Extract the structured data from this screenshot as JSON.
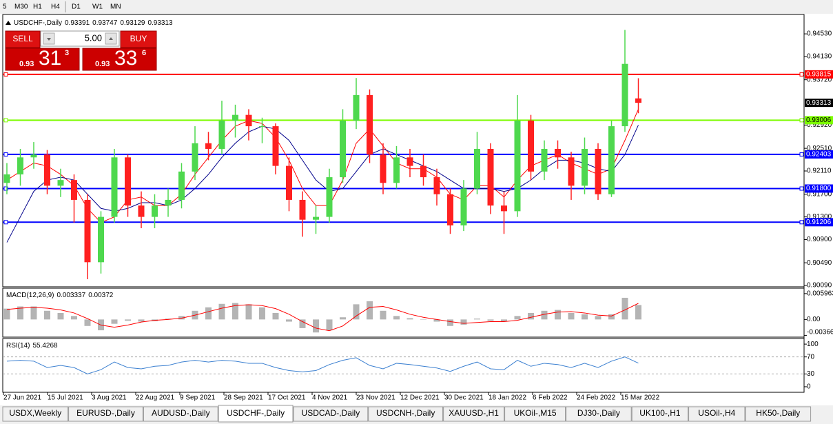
{
  "toolbar": {
    "timeframes": [
      "5",
      "M30",
      "H1",
      "H4",
      "D1",
      "W1",
      "MN"
    ]
  },
  "trade_panel": {
    "sell": "SELL",
    "buy": "BUY",
    "lot": "5.00",
    "bid_prefix": "0.93",
    "bid_big": "31",
    "bid_small": "3",
    "ask_prefix": "0.93",
    "ask_big": "33",
    "ask_small": "6"
  },
  "chart_data": [
    {
      "type": "candlestick",
      "title": "USDCHF-,Daily",
      "up_color": "#4ed84e",
      "down_color": "#ff2020",
      "ylim": [
        0.90066,
        0.94872
      ],
      "yticks": [
        {
          "value": 0.9453,
          "label": "0.94530"
        },
        {
          "value": 0.9413,
          "label": "0.94130"
        },
        {
          "value": 0.9372,
          "label": "0.93720"
        },
        {
          "value": 0.9292,
          "label": "0.92920"
        },
        {
          "value": 0.9251,
          "label": "0.92510"
        },
        {
          "value": 0.9211,
          "label": "0.92110"
        },
        {
          "value": 0.917,
          "label": "0.91700"
        },
        {
          "value": 0.913,
          "label": "0.91300"
        },
        {
          "value": 0.909,
          "label": "0.90900"
        },
        {
          "value": 0.9049,
          "label": "0.90490"
        },
        {
          "value": 0.9009,
          "label": "0.90090"
        }
      ],
      "levels": [
        {
          "value": 0.93815,
          "color": "#ff0000"
        },
        {
          "value": 0.93006,
          "color": "#7cfc00"
        },
        {
          "value": 0.92403,
          "color": "#0000ff"
        },
        {
          "value": 0.918,
          "label": "0.91800",
          "color": "#0000ff"
        },
        {
          "value": 0.91206,
          "color": "#0000ff"
        }
      ],
      "x_tick_labels": [
        "27 Jun 2021",
        "15 Jul 2021",
        "3 Aug 2021",
        "22 Aug 2021",
        "9 Sep 2021",
        "28 Sep 2021",
        "17 Oct 2021",
        "4 Nov 2021",
        "23 Nov 2021",
        "12 Dec 2021",
        "30 Dec 2021",
        "18 Jan 2022",
        "6 Feb 2022",
        "24 Feb 2022",
        "15 Mar 2022"
      ],
      "candles": [
        [
          0.919,
          0.9225,
          0.917,
          0.9205
        ],
        [
          0.9205,
          0.925,
          0.9185,
          0.9235
        ],
        [
          0.9235,
          0.9262,
          0.9215,
          0.924
        ],
        [
          0.924,
          0.9248,
          0.917,
          0.9185
        ],
        [
          0.9185,
          0.9215,
          0.9165,
          0.9195
        ],
        [
          0.9195,
          0.9205,
          0.912,
          0.916
        ],
        [
          0.916,
          0.917,
          0.902,
          0.905
        ],
        [
          0.905,
          0.914,
          0.903,
          0.913
        ],
        [
          0.913,
          0.925,
          0.912,
          0.9235
        ],
        [
          0.9235,
          0.924,
          0.913,
          0.915
        ],
        [
          0.915,
          0.9175,
          0.911,
          0.913
        ],
        [
          0.913,
          0.917,
          0.911,
          0.915
        ],
        [
          0.915,
          0.918,
          0.913,
          0.916
        ],
        [
          0.916,
          0.9225,
          0.9145,
          0.921
        ],
        [
          0.921,
          0.929,
          0.9195,
          0.926
        ],
        [
          0.926,
          0.928,
          0.923,
          0.925
        ],
        [
          0.925,
          0.9335,
          0.924,
          0.93
        ],
        [
          0.93,
          0.9328,
          0.927,
          0.931
        ],
        [
          0.931,
          0.932,
          0.9265,
          0.929
        ],
        [
          0.929,
          0.9305,
          0.926,
          0.929
        ],
        [
          0.929,
          0.9295,
          0.9205,
          0.922
        ],
        [
          0.922,
          0.9235,
          0.914,
          0.916
        ],
        [
          0.916,
          0.9175,
          0.9095,
          0.9125
        ],
        [
          0.9125,
          0.915,
          0.91,
          0.913
        ],
        [
          0.913,
          0.9215,
          0.912,
          0.92
        ],
        [
          0.92,
          0.932,
          0.919,
          0.93
        ],
        [
          0.93,
          0.9375,
          0.9285,
          0.9345
        ],
        [
          0.9345,
          0.9355,
          0.9225,
          0.924
        ],
        [
          0.924,
          0.926,
          0.917,
          0.919
        ],
        [
          0.919,
          0.9255,
          0.918,
          0.9235
        ],
        [
          0.9235,
          0.925,
          0.92,
          0.922
        ],
        [
          0.922,
          0.924,
          0.9185,
          0.92
        ],
        [
          0.92,
          0.9215,
          0.915,
          0.917
        ],
        [
          0.917,
          0.918,
          0.91,
          0.9115
        ],
        [
          0.9115,
          0.9195,
          0.9105,
          0.918
        ],
        [
          0.918,
          0.928,
          0.917,
          0.925
        ],
        [
          0.925,
          0.926,
          0.9135,
          0.915
        ],
        [
          0.915,
          0.9175,
          0.91,
          0.914
        ],
        [
          0.914,
          0.9345,
          0.913,
          0.93
        ],
        [
          0.93,
          0.931,
          0.9195,
          0.921
        ],
        [
          0.921,
          0.9265,
          0.9195,
          0.925
        ],
        [
          0.925,
          0.9265,
          0.9215,
          0.9235
        ],
        [
          0.9235,
          0.9245,
          0.916,
          0.9185
        ],
        [
          0.9185,
          0.927,
          0.917,
          0.925
        ],
        [
          0.925,
          0.926,
          0.916,
          0.917
        ],
        [
          0.917,
          0.93,
          0.9165,
          0.929
        ],
        [
          0.929,
          0.946,
          0.928,
          0.94
        ],
        [
          0.93391,
          0.93747,
          0.93129,
          0.93313
        ]
      ],
      "moving_averages": [
        {
          "color": "#ff0000",
          "values": [
            0.9195,
            0.921,
            0.9225,
            0.922,
            0.9205,
            0.9185,
            0.9145,
            0.912,
            0.913,
            0.916,
            0.9165,
            0.915,
            0.915,
            0.917,
            0.9205,
            0.9235,
            0.9265,
            0.929,
            0.93,
            0.9295,
            0.927,
            0.923,
            0.918,
            0.915,
            0.915,
            0.9195,
            0.926,
            0.9285,
            0.9255,
            0.9225,
            0.9215,
            0.9215,
            0.92,
            0.917,
            0.916,
            0.9185,
            0.9185,
            0.9165,
            0.9195,
            0.922,
            0.923,
            0.924,
            0.9225,
            0.9215,
            0.9205,
            0.9215,
            0.9265,
            0.932
          ]
        },
        {
          "color": "#00008b",
          "values": [
            0.9085,
            0.913,
            0.9175,
            0.9195,
            0.92,
            0.9195,
            0.917,
            0.9145,
            0.914,
            0.9145,
            0.9155,
            0.9155,
            0.915,
            0.916,
            0.918,
            0.9205,
            0.9235,
            0.926,
            0.928,
            0.929,
            0.9285,
            0.9265,
            0.923,
            0.9195,
            0.9175,
            0.918,
            0.921,
            0.924,
            0.925,
            0.924,
            0.923,
            0.922,
            0.921,
            0.9195,
            0.918,
            0.918,
            0.918,
            0.9175,
            0.918,
            0.9195,
            0.9215,
            0.923,
            0.923,
            0.9225,
            0.9215,
            0.921,
            0.924,
            0.9292
          ]
        }
      ]
    },
    {
      "type": "macd",
      "title": "MACD(12,26,9)",
      "hist_color": "#b4b4b4",
      "signal_color": "#ff0000",
      "ylim": [
        -0.00392,
        0.00706
      ],
      "yticks": [
        0.005963,
        {
          "value": 0,
          "label": "0.00"
        },
        -0.003664
      ],
      "values": [
        0.0025,
        0.003,
        0.003,
        0.002,
        0.0015,
        0.0008,
        -0.0015,
        -0.0025,
        -0.001,
        -0.0003,
        -0.0005,
        -0.0004,
        0.0002,
        0.0008,
        0.002,
        0.0028,
        0.0036,
        0.0038,
        0.0035,
        0.0028,
        0.0015,
        -0.0005,
        -0.002,
        -0.003,
        -0.0025,
        0.0005,
        0.0035,
        0.0042,
        0.002,
        0.0008,
        0.0003,
        0,
        -0.0005,
        -0.0015,
        -0.0012,
        0.0002,
        -0.0003,
        -0.0005,
        0.0008,
        0.0015,
        0.002,
        0.0022,
        0.0015,
        0.0012,
        0.0008,
        0.0012,
        0.005,
        0.003337
      ],
      "signal": [
        0.0023,
        0.0026,
        0.0028,
        0.0026,
        0.0022,
        0.0015,
        0.0002,
        -0.0013,
        -0.0018,
        -0.0013,
        -0.0006,
        -0.0002,
        0,
        0.0003,
        0.001,
        0.0018,
        0.0026,
        0.0032,
        0.0034,
        0.0032,
        0.0025,
        0.0012,
        -0.0005,
        -0.002,
        -0.0026,
        -0.0015,
        0.0008,
        0.0028,
        0.003,
        0.0022,
        0.0012,
        0.0005,
        0,
        -0.0005,
        -0.0009,
        -0.0007,
        -0.0005,
        -0.0005,
        -0.0002,
        0.0005,
        0.0012,
        0.0017,
        0.0018,
        0.0015,
        0.001,
        0.0008,
        0.0022,
        0.00372
      ]
    },
    {
      "type": "line",
      "title": "RSI(14)",
      "color": "#3a7fd0",
      "ylim": [
        -13,
        111.5
      ],
      "yticks": [
        100,
        70,
        30,
        0
      ],
      "dashed_levels": [
        70,
        30
      ],
      "values": [
        60,
        62,
        60,
        45,
        50,
        45,
        30,
        40,
        58,
        45,
        42,
        48,
        50,
        58,
        62,
        58,
        62,
        60,
        55,
        55,
        45,
        38,
        35,
        38,
        52,
        62,
        68,
        50,
        42,
        55,
        52,
        48,
        44,
        36,
        48,
        58,
        42,
        40,
        62,
        48,
        55,
        52,
        45,
        55,
        45,
        60,
        70,
        55.4268
      ]
    }
  ],
  "tabs": {
    "items": [
      "USDX,Weekly",
      "EURUSD-,Daily",
      "AUDUSD-,Daily",
      "USDCHF-,Daily",
      "USDCAD-,Daily",
      "USDCNH-,Daily",
      "XAUUSD-,H1",
      "UKOil-,M15",
      "DJ30-,Daily",
      "UK100-,H1",
      "USOil-,H4",
      "HK50-,Daily"
    ],
    "active": 3
  }
}
